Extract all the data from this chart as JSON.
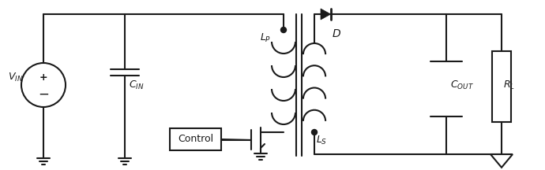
{
  "bg_color": "#ffffff",
  "line_color": "#1a1a1a",
  "line_width": 1.5,
  "fig_width": 6.9,
  "fig_height": 2.16,
  "dpi": 100
}
